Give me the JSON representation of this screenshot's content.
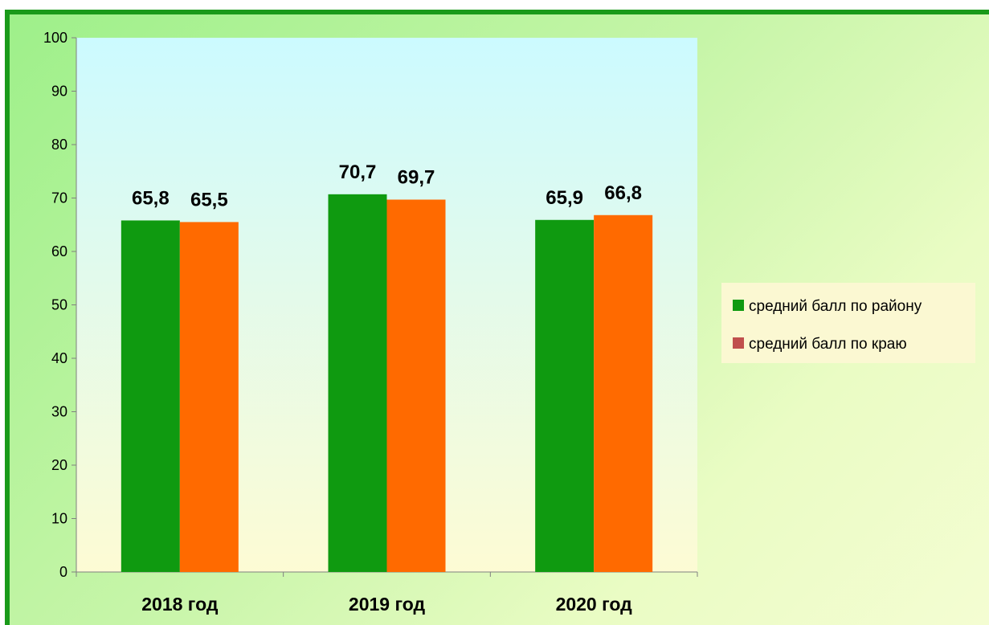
{
  "chart_data": {
    "type": "bar",
    "title": "",
    "xlabel": "",
    "ylabel": "",
    "categories": [
      "2018 год",
      "2019 год",
      "2020 год"
    ],
    "series": [
      {
        "name": "средний балл по району",
        "values": [
          65.8,
          70.7,
          65.9
        ],
        "labels": [
          "65,8",
          "70,7",
          "65,9"
        ],
        "color": "#0f9a10"
      },
      {
        "name": "средний балл по краю",
        "values": [
          65.5,
          69.7,
          66.8
        ],
        "labels": [
          "65,5",
          "69,7",
          "66,8"
        ],
        "color": "#ff6a00",
        "legend_color": "#c0504d"
      }
    ],
    "ylim": [
      0,
      100
    ],
    "yticks": [
      0,
      10,
      20,
      30,
      40,
      50,
      60,
      70,
      80,
      90,
      100
    ],
    "grid": false,
    "legend_position": "right"
  },
  "colors": {
    "frame_border": "#1a9a1a",
    "plot_top": "#ccfaff",
    "plot_bottom": "#fdfbd4",
    "legend_bg": "#fbf8d2"
  }
}
